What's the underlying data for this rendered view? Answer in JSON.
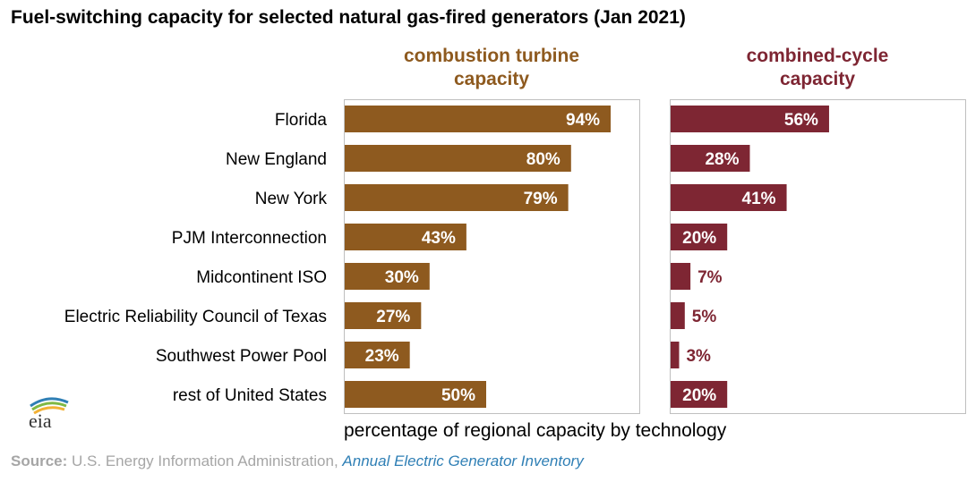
{
  "title": "Fuel-switching capacity for selected natural gas-fired generators (Jan 2021)",
  "xlabel": "percentage of regional capacity by technology",
  "source": {
    "label": "Source:",
    "text": "U.S. Energy Information Administration,",
    "link": "Annual Electric Generator Inventory"
  },
  "logo_text": "eia",
  "chart_data": [
    {
      "type": "bar",
      "orientation": "horizontal",
      "title": "combustion turbine\ncapacity",
      "categories": [
        "Florida",
        "New England",
        "New York",
        "PJM Interconnection",
        "Midcontinent ISO",
        "Electric Reliability Council of Texas",
        "Southwest Power Pool",
        "rest of United States"
      ],
      "values": [
        94,
        80,
        79,
        43,
        30,
        27,
        23,
        50
      ],
      "data_labels": [
        "94%",
        "80%",
        "79%",
        "43%",
        "30%",
        "27%",
        "23%",
        "50%"
      ],
      "color": "#8e5a1f",
      "xlim": [
        0,
        100
      ]
    },
    {
      "type": "bar",
      "orientation": "horizontal",
      "title": "combined-cycle\ncapacity",
      "categories": [
        "Florida",
        "New England",
        "New York",
        "PJM Interconnection",
        "Midcontinent ISO",
        "Electric Reliability Council of Texas",
        "Southwest Power Pool",
        "rest of United States"
      ],
      "values": [
        56,
        28,
        41,
        20,
        7,
        5,
        3,
        20
      ],
      "data_labels": [
        "56%",
        "28%",
        "41%",
        "20%",
        "7%",
        "5%",
        "3%",
        "20%"
      ],
      "color": "#7e2633",
      "xlim": [
        0,
        100
      ]
    }
  ]
}
